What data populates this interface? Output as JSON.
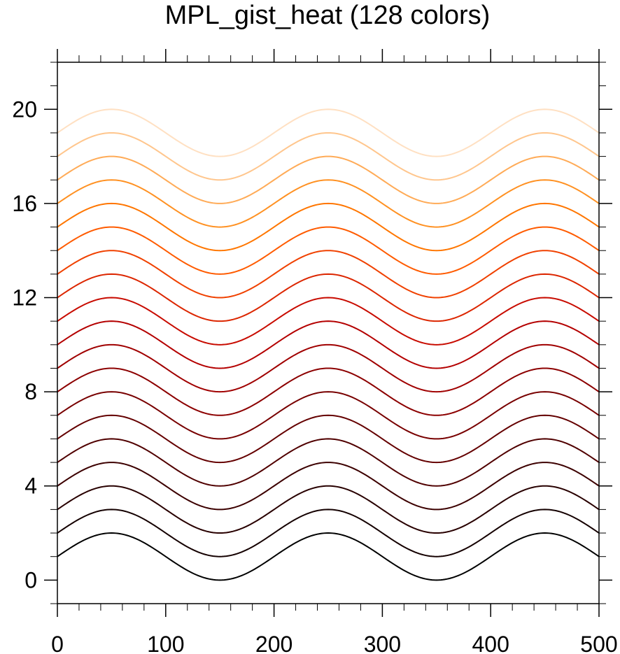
{
  "chart_data": {
    "type": "line",
    "title": "MPL_gist_heat (128 colors)",
    "xlabel": "",
    "ylabel": "",
    "xlim": [
      0,
      500
    ],
    "ylim": [
      -1,
      22
    ],
    "xticks": [
      0,
      100,
      200,
      300,
      400,
      500
    ],
    "xtick_labels": [
      "0",
      "100",
      "200",
      "300",
      "400",
      "500"
    ],
    "x_minor_step": 20,
    "yticks": [
      0,
      4,
      8,
      12,
      16,
      20
    ],
    "ytick_labels": [
      "0",
      "4",
      "8",
      "12",
      "16",
      "20"
    ],
    "y_minor_step": 1,
    "grid": false,
    "function": "y = offset + 1 + sin(2*pi*x/200)",
    "series": [
      {
        "offset": 0,
        "color": "#000000"
      },
      {
        "offset": 1,
        "color": "#140000"
      },
      {
        "offset": 2,
        "color": "#280000"
      },
      {
        "offset": 3,
        "color": "#3c0000"
      },
      {
        "offset": 4,
        "color": "#500000"
      },
      {
        "offset": 5,
        "color": "#640000"
      },
      {
        "offset": 6,
        "color": "#780000"
      },
      {
        "offset": 7,
        "color": "#8c0000"
      },
      {
        "offset": 8,
        "color": "#a00000"
      },
      {
        "offset": 9,
        "color": "#b40000"
      },
      {
        "offset": 10,
        "color": "#c80b00"
      },
      {
        "offset": 11,
        "color": "#dc2600"
      },
      {
        "offset": 12,
        "color": "#f04100"
      },
      {
        "offset": 13,
        "color": "#ff5b00"
      },
      {
        "offset": 14,
        "color": "#ff7600"
      },
      {
        "offset": 15,
        "color": "#ff9122"
      },
      {
        "offset": 16,
        "color": "#ffab57"
      },
      {
        "offset": 17,
        "color": "#ffc68d"
      },
      {
        "offset": 18,
        "color": "#ffe0c2"
      }
    ]
  }
}
